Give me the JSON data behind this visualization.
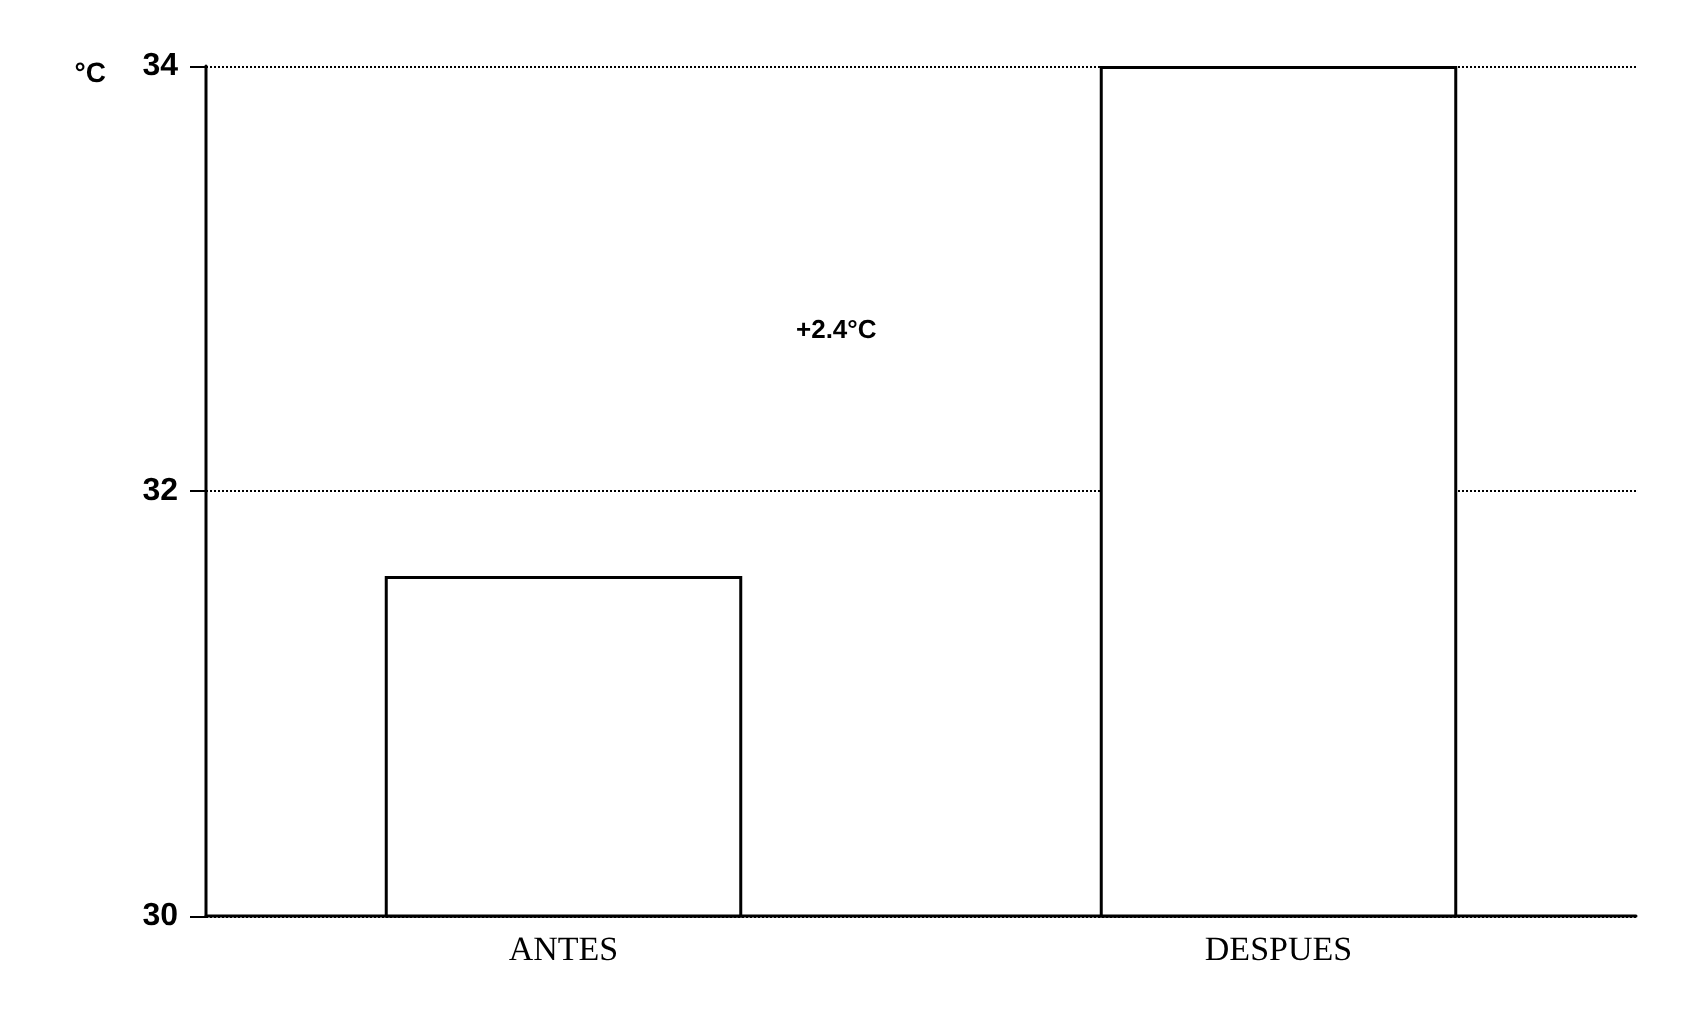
{
  "chart_data": {
    "type": "bar",
    "ylabel": "°C",
    "categories": [
      "ANTES",
      "DESPUES"
    ],
    "values": [
      31.6,
      34
    ],
    "colors": [
      "#ffffff",
      "#ffffff"
    ],
    "ylim": [
      30,
      34
    ],
    "yticks": [
      30,
      32,
      34
    ],
    "grid": "y",
    "annotations": [
      "+2.4°C"
    ]
  }
}
